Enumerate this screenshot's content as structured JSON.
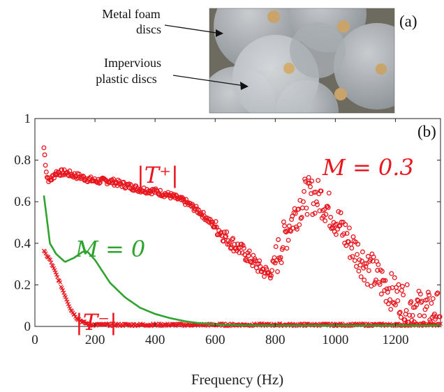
{
  "panel_a": {
    "label": "(a)",
    "callouts": [
      {
        "lines": [
          "Metal foam",
          "discs"
        ]
      },
      {
        "lines": [
          "Impervious",
          "plastic discs"
        ]
      }
    ]
  },
  "panel_b": {
    "label": "(b)",
    "annotations": {
      "t_plus": "|T⁺|",
      "t_minus": "|T⁻|",
      "m0": "M = 0",
      "m03": "M = 0.3"
    }
  },
  "chart_data": {
    "type": "scatter",
    "xlabel": "Frequency (Hz)",
    "ylabel": "",
    "xlim": [
      0,
      1350
    ],
    "ylim": [
      0,
      1
    ],
    "xticks": [
      0,
      200,
      400,
      600,
      800,
      1000,
      1200
    ],
    "yticks": [
      0,
      0.2,
      0.4,
      0.6,
      0.8,
      1
    ],
    "ytick_labels": [
      "0",
      "0.2",
      "0.4",
      "0.6",
      "0.8",
      "1"
    ],
    "grid": false,
    "series": [
      {
        "name": "",
        "marker": "circle",
        "color": "#e8161e",
        "x": [
          30,
          40,
          50,
          70,
          100,
          150,
          200,
          250,
          300,
          350,
          400,
          450,
          500,
          550,
          600,
          650,
          700,
          750,
          780,
          800,
          850,
          900,
          950,
          1000,
          1050,
          1100,
          1150,
          1200,
          1250,
          1300,
          1350
        ],
        "y": [
          0.86,
          0.72,
          0.7,
          0.74,
          0.74,
          0.72,
          0.7,
          0.7,
          0.68,
          0.66,
          0.65,
          0.63,
          0.6,
          0.55,
          0.48,
          0.41,
          0.35,
          0.28,
          0.25,
          0.31,
          0.5,
          0.63,
          0.62,
          0.52,
          0.4,
          0.3,
          0.22,
          0.15,
          0.1,
          0.08,
          0.08
        ]
      },
      {
        "name": "",
        "marker": "cross",
        "color": "#e8161e",
        "x": [
          30,
          50,
          80,
          100,
          120,
          140,
          160,
          180,
          200,
          250,
          300,
          400,
          600,
          800,
          1000,
          1200,
          1350
        ],
        "y": [
          0.36,
          0.32,
          0.22,
          0.15,
          0.08,
          0.04,
          0.02,
          0.01,
          0.008,
          0.008,
          0.008,
          0.008,
          0.008,
          0.008,
          0.008,
          0.008,
          0.008
        ]
      },
      {
        "name": "",
        "marker": "line",
        "color": "#2ea32e",
        "x": [
          30,
          50,
          70,
          100,
          130,
          160,
          175,
          200,
          250,
          300,
          350,
          400,
          450,
          500,
          550,
          600,
          700,
          800,
          1000,
          1200,
          1350
        ],
        "y": [
          0.63,
          0.4,
          0.35,
          0.31,
          0.33,
          0.36,
          0.36,
          0.32,
          0.21,
          0.14,
          0.09,
          0.06,
          0.04,
          0.025,
          0.015,
          0.01,
          0.005,
          0.004,
          0.004,
          0.004,
          0.004
        ]
      }
    ]
  }
}
